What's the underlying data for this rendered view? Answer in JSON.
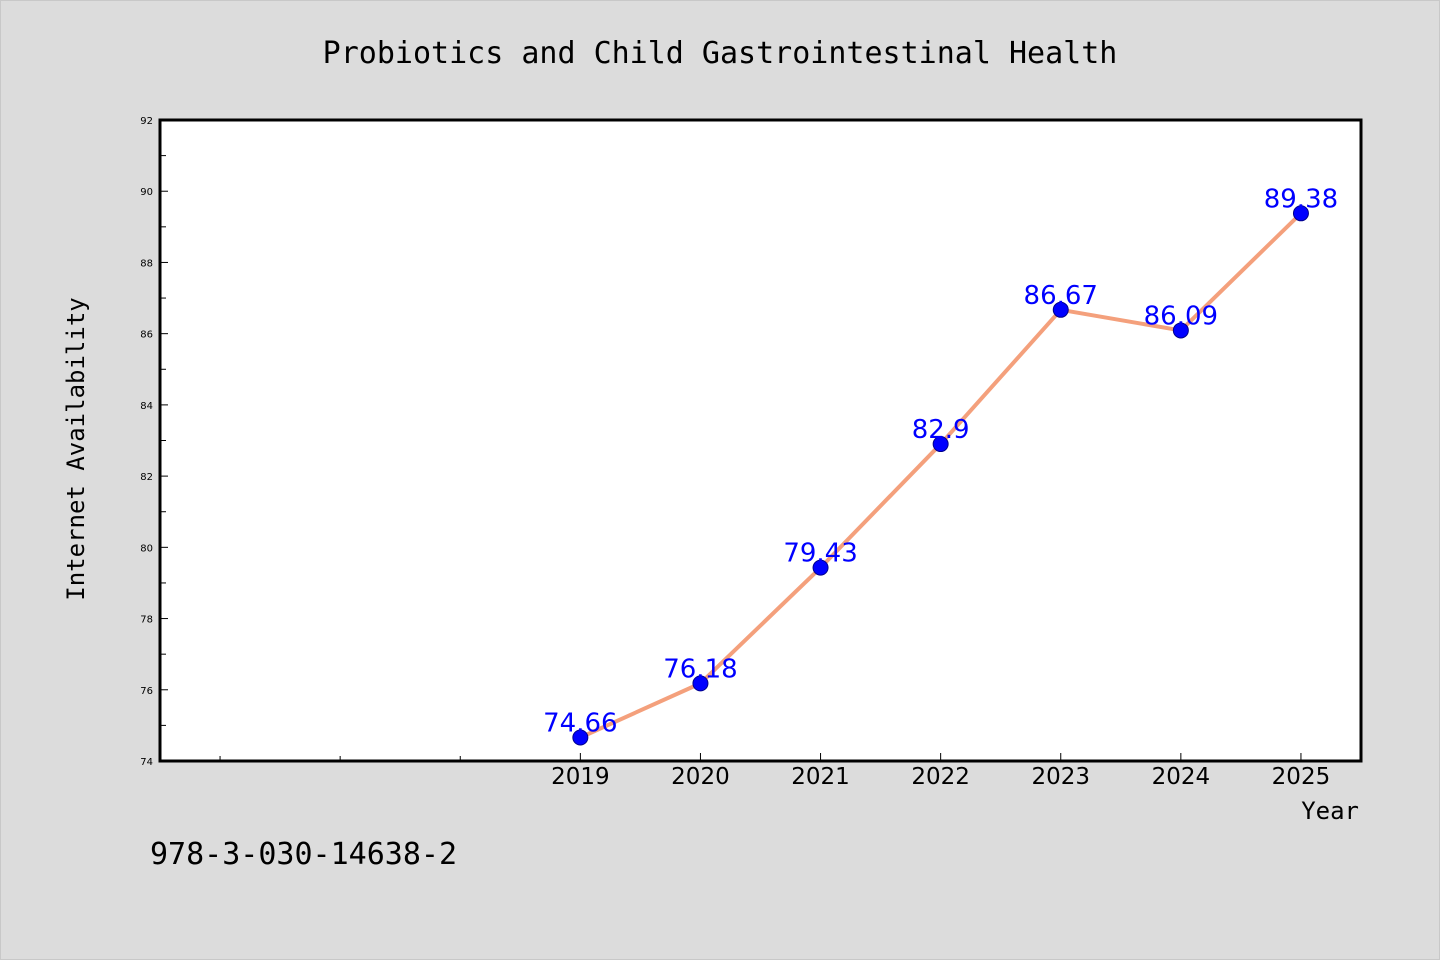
{
  "footer_text": "978-3-030-14638-2",
  "colors": {
    "background": "#dcdcdc",
    "plot_area": "#ffffff",
    "line": "#f4a07c",
    "marker": "#0000ff",
    "data_label": "#0000ff"
  },
  "chart_data": {
    "type": "line",
    "title": "Probiotics and Child Gastrointestinal Health",
    "xlabel": "Year",
    "ylabel": "Internet Availability",
    "categories": [
      "2019",
      "2020",
      "2021",
      "2022",
      "2023",
      "2024",
      "2025"
    ],
    "series": [
      {
        "values": [
          74.66,
          76.18,
          79.43,
          82.9,
          86.67,
          86.09,
          89.38
        ]
      }
    ],
    "data_labels": [
      "74.66",
      "76.18",
      "79.43",
      "82.9",
      "86.67",
      "86.09",
      "89.38"
    ],
    "ylim": [
      74,
      92
    ],
    "yticks": [
      74,
      76,
      78,
      80,
      82,
      84,
      86,
      88,
      90,
      92
    ],
    "xlim": [
      2015.5,
      2025.5
    ],
    "grid": false,
    "marker": "circle"
  }
}
